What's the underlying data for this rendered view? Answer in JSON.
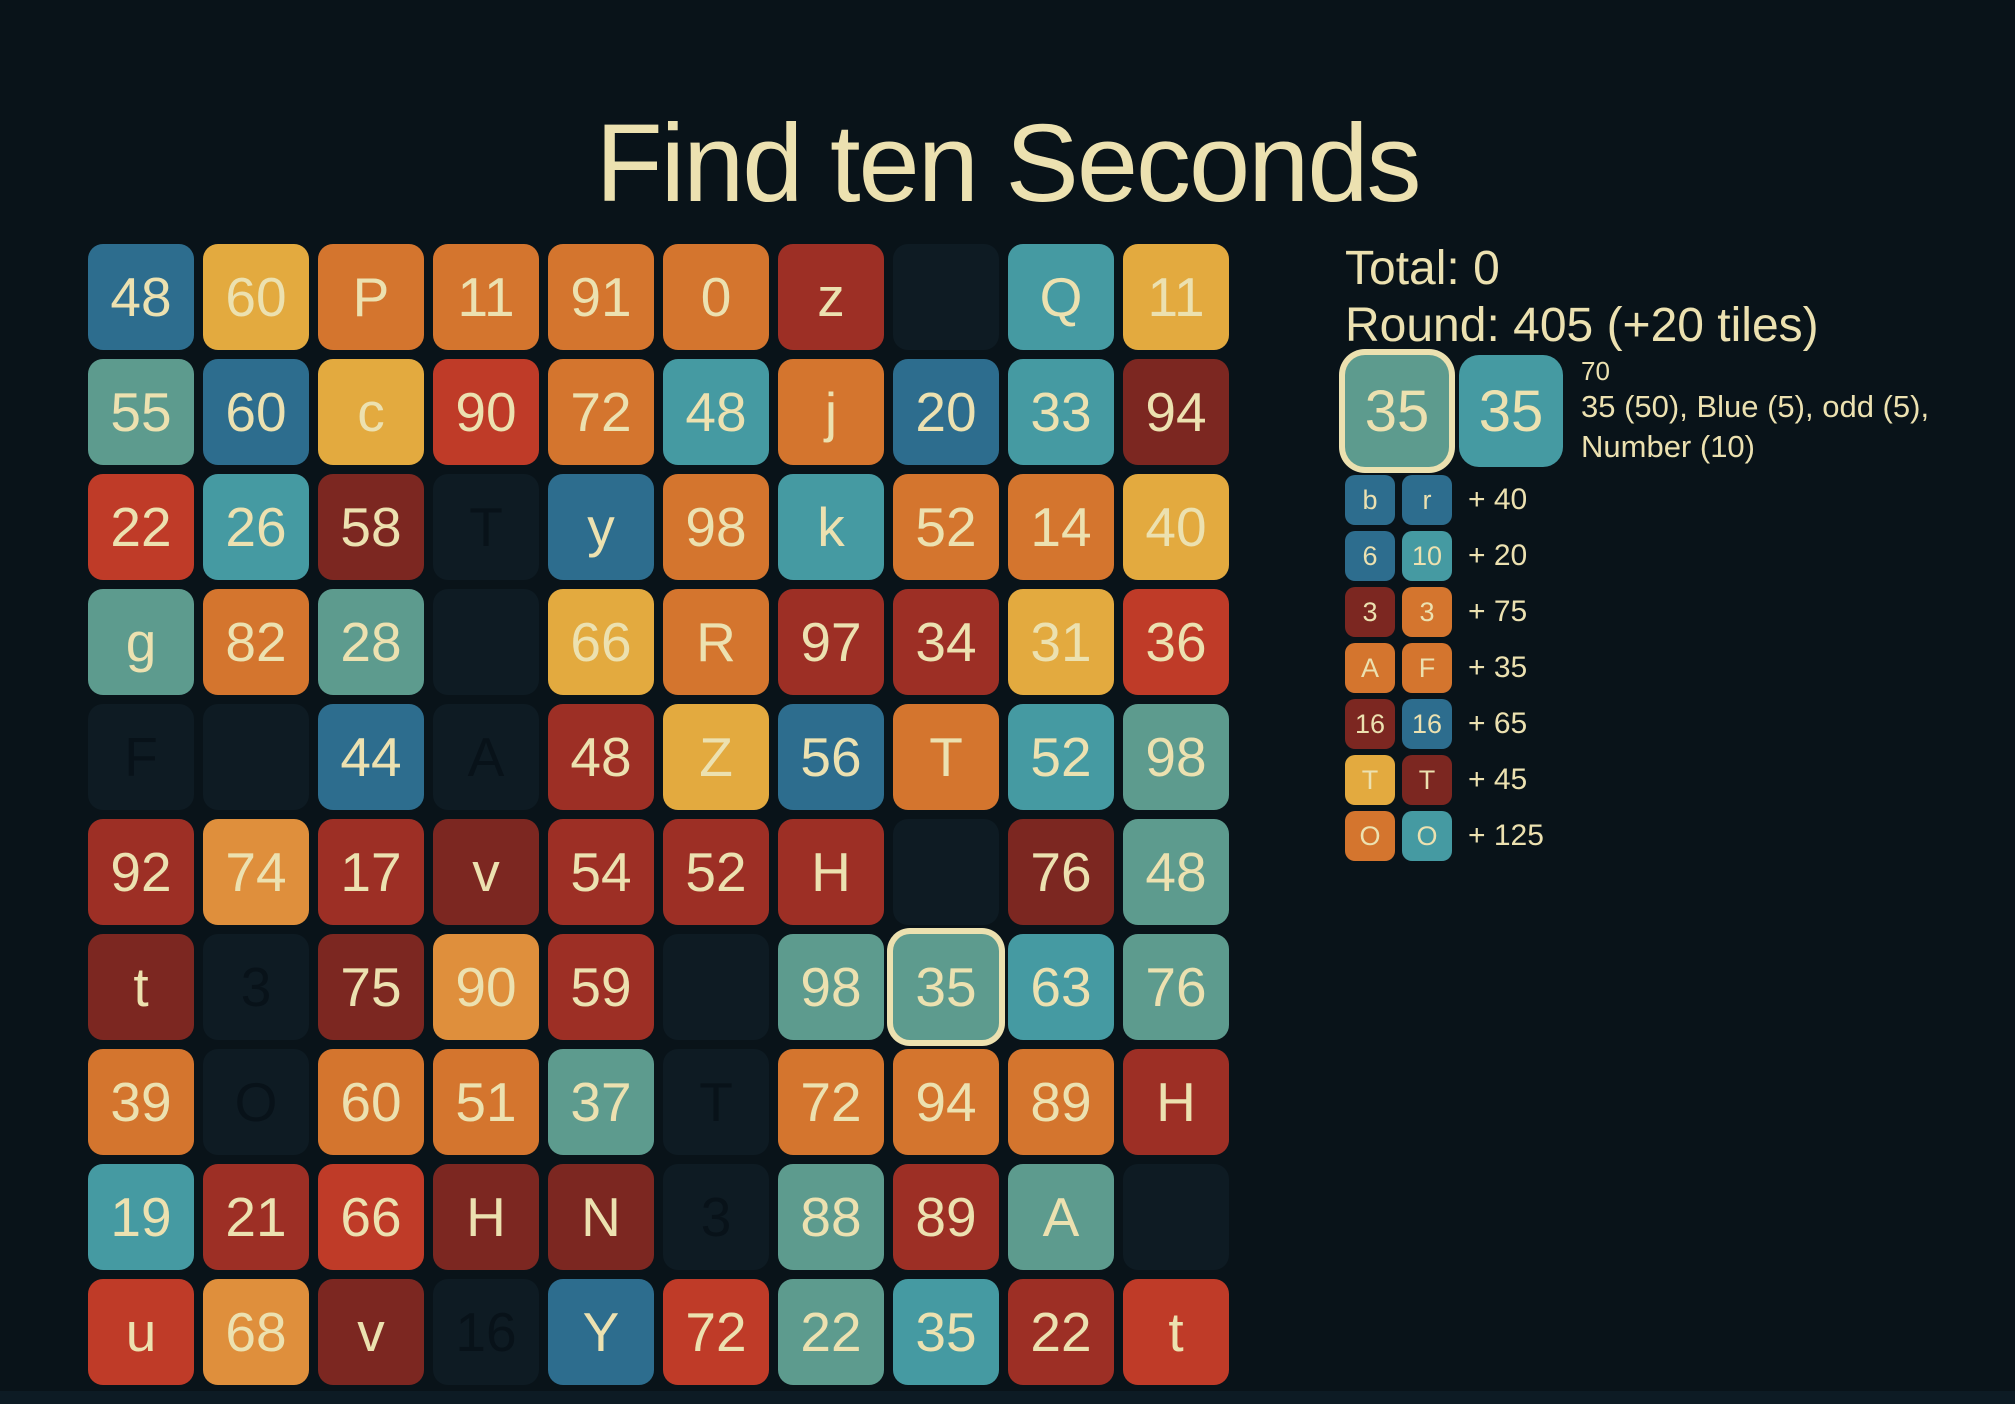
{
  "title": "Find ten Seconds",
  "colors": {
    "background": "#091319",
    "text_cream": "#ece1b0",
    "tile_palette": {
      "blue": "#2d6d8e",
      "teal": "#459aa2",
      "sage": "#5d9b8e",
      "gold": "#e3aa3f",
      "orange": "#d4752e",
      "amber": "#df8f3c",
      "red": "#bf3b28",
      "darkred": "#9d2f25",
      "maroon": "#7c2721"
    }
  },
  "board": {
    "rows": 10,
    "cols": 10,
    "tiles": [
      {
        "r": 1,
        "c": 1,
        "label": "48",
        "color": "blue",
        "state": "normal"
      },
      {
        "r": 1,
        "c": 2,
        "label": "60",
        "color": "gold",
        "state": "normal"
      },
      {
        "r": 1,
        "c": 3,
        "label": "P",
        "color": "orange",
        "state": "normal"
      },
      {
        "r": 1,
        "c": 4,
        "label": "11",
        "color": "orange",
        "state": "normal"
      },
      {
        "r": 1,
        "c": 5,
        "label": "91",
        "color": "orange",
        "state": "normal"
      },
      {
        "r": 1,
        "c": 6,
        "label": "0",
        "color": "orange",
        "state": "normal"
      },
      {
        "r": 1,
        "c": 7,
        "label": "z",
        "color": "darkred",
        "state": "normal"
      },
      {
        "r": 1,
        "c": 8,
        "label": "",
        "color": "ghost",
        "state": "ghost"
      },
      {
        "r": 1,
        "c": 9,
        "label": "Q",
        "color": "teal",
        "state": "normal"
      },
      {
        "r": 1,
        "c": 10,
        "label": "11",
        "color": "gold",
        "state": "normal"
      },
      {
        "r": 2,
        "c": 1,
        "label": "55",
        "color": "sage",
        "state": "normal"
      },
      {
        "r": 2,
        "c": 2,
        "label": "60",
        "color": "blue",
        "state": "normal"
      },
      {
        "r": 2,
        "c": 3,
        "label": "c",
        "color": "gold",
        "state": "normal"
      },
      {
        "r": 2,
        "c": 4,
        "label": "90",
        "color": "red",
        "state": "normal"
      },
      {
        "r": 2,
        "c": 5,
        "label": "72",
        "color": "orange",
        "state": "normal"
      },
      {
        "r": 2,
        "c": 6,
        "label": "48",
        "color": "teal",
        "state": "normal"
      },
      {
        "r": 2,
        "c": 7,
        "label": "j",
        "color": "orange",
        "state": "normal"
      },
      {
        "r": 2,
        "c": 8,
        "label": "20",
        "color": "blue",
        "state": "normal"
      },
      {
        "r": 2,
        "c": 9,
        "label": "33",
        "color": "teal",
        "state": "normal"
      },
      {
        "r": 2,
        "c": 10,
        "label": "94",
        "color": "maroon",
        "state": "normal"
      },
      {
        "r": 3,
        "c": 1,
        "label": "22",
        "color": "red",
        "state": "normal"
      },
      {
        "r": 3,
        "c": 2,
        "label": "26",
        "color": "teal",
        "state": "normal"
      },
      {
        "r": 3,
        "c": 3,
        "label": "58",
        "color": "maroon",
        "state": "normal"
      },
      {
        "r": 3,
        "c": 4,
        "label": "T",
        "color": "ghost",
        "state": "ghost"
      },
      {
        "r": 3,
        "c": 5,
        "label": "y",
        "color": "blue",
        "state": "normal"
      },
      {
        "r": 3,
        "c": 6,
        "label": "98",
        "color": "orange",
        "state": "normal"
      },
      {
        "r": 3,
        "c": 7,
        "label": "k",
        "color": "teal",
        "state": "normal"
      },
      {
        "r": 3,
        "c": 8,
        "label": "52",
        "color": "orange",
        "state": "normal"
      },
      {
        "r": 3,
        "c": 9,
        "label": "14",
        "color": "orange",
        "state": "normal"
      },
      {
        "r": 3,
        "c": 10,
        "label": "40",
        "color": "gold",
        "state": "normal"
      },
      {
        "r": 4,
        "c": 1,
        "label": "g",
        "color": "sage",
        "state": "normal"
      },
      {
        "r": 4,
        "c": 2,
        "label": "82",
        "color": "orange",
        "state": "normal"
      },
      {
        "r": 4,
        "c": 3,
        "label": "28",
        "color": "sage",
        "state": "normal"
      },
      {
        "r": 4,
        "c": 4,
        "label": "",
        "color": "ghost",
        "state": "ghost"
      },
      {
        "r": 4,
        "c": 5,
        "label": "66",
        "color": "gold",
        "state": "normal"
      },
      {
        "r": 4,
        "c": 6,
        "label": "R",
        "color": "orange",
        "state": "normal"
      },
      {
        "r": 4,
        "c": 7,
        "label": "97",
        "color": "darkred",
        "state": "normal"
      },
      {
        "r": 4,
        "c": 8,
        "label": "34",
        "color": "darkred",
        "state": "normal"
      },
      {
        "r": 4,
        "c": 9,
        "label": "31",
        "color": "gold",
        "state": "normal"
      },
      {
        "r": 4,
        "c": 10,
        "label": "36",
        "color": "red",
        "state": "normal"
      },
      {
        "r": 5,
        "c": 1,
        "label": "F",
        "color": "ghost",
        "state": "ghost"
      },
      {
        "r": 5,
        "c": 2,
        "label": "",
        "color": "ghost",
        "state": "ghost"
      },
      {
        "r": 5,
        "c": 3,
        "label": "44",
        "color": "blue",
        "state": "normal"
      },
      {
        "r": 5,
        "c": 4,
        "label": "A",
        "color": "ghost",
        "state": "ghost"
      },
      {
        "r": 5,
        "c": 5,
        "label": "48",
        "color": "darkred",
        "state": "normal"
      },
      {
        "r": 5,
        "c": 6,
        "label": "Z",
        "color": "gold",
        "state": "normal"
      },
      {
        "r": 5,
        "c": 7,
        "label": "56",
        "color": "blue",
        "state": "normal"
      },
      {
        "r": 5,
        "c": 8,
        "label": "T",
        "color": "orange",
        "state": "normal"
      },
      {
        "r": 5,
        "c": 9,
        "label": "52",
        "color": "teal",
        "state": "normal"
      },
      {
        "r": 5,
        "c": 10,
        "label": "98",
        "color": "sage",
        "state": "normal"
      },
      {
        "r": 6,
        "c": 1,
        "label": "92",
        "color": "darkred",
        "state": "normal"
      },
      {
        "r": 6,
        "c": 2,
        "label": "74",
        "color": "amber",
        "state": "normal"
      },
      {
        "r": 6,
        "c": 3,
        "label": "17",
        "color": "darkred",
        "state": "normal"
      },
      {
        "r": 6,
        "c": 4,
        "label": "v",
        "color": "maroon",
        "state": "normal"
      },
      {
        "r": 6,
        "c": 5,
        "label": "54",
        "color": "darkred",
        "state": "normal"
      },
      {
        "r": 6,
        "c": 6,
        "label": "52",
        "color": "darkred",
        "state": "normal"
      },
      {
        "r": 6,
        "c": 7,
        "label": "H",
        "color": "darkred",
        "state": "normal"
      },
      {
        "r": 6,
        "c": 8,
        "label": "",
        "color": "ghost",
        "state": "ghost"
      },
      {
        "r": 6,
        "c": 9,
        "label": "76",
        "color": "maroon",
        "state": "normal"
      },
      {
        "r": 6,
        "c": 10,
        "label": "48",
        "color": "sage",
        "state": "normal"
      },
      {
        "r": 7,
        "c": 1,
        "label": "t",
        "color": "maroon",
        "state": "normal"
      },
      {
        "r": 7,
        "c": 2,
        "label": "3",
        "color": "ghost",
        "state": "ghost"
      },
      {
        "r": 7,
        "c": 3,
        "label": "75",
        "color": "maroon",
        "state": "normal"
      },
      {
        "r": 7,
        "c": 4,
        "label": "90",
        "color": "amber",
        "state": "normal"
      },
      {
        "r": 7,
        "c": 5,
        "label": "59",
        "color": "darkred",
        "state": "normal"
      },
      {
        "r": 7,
        "c": 6,
        "label": "",
        "color": "ghost",
        "state": "ghost"
      },
      {
        "r": 7,
        "c": 7,
        "label": "98",
        "color": "sage",
        "state": "normal"
      },
      {
        "r": 7,
        "c": 8,
        "label": "35",
        "color": "sage",
        "state": "selected"
      },
      {
        "r": 7,
        "c": 9,
        "label": "63",
        "color": "teal",
        "state": "normal"
      },
      {
        "r": 7,
        "c": 10,
        "label": "76",
        "color": "sage",
        "state": "normal"
      },
      {
        "r": 8,
        "c": 1,
        "label": "39",
        "color": "orange",
        "state": "normal"
      },
      {
        "r": 8,
        "c": 2,
        "label": "O",
        "color": "ghost",
        "state": "ghost"
      },
      {
        "r": 8,
        "c": 3,
        "label": "60",
        "color": "orange",
        "state": "normal"
      },
      {
        "r": 8,
        "c": 4,
        "label": "51",
        "color": "orange",
        "state": "normal"
      },
      {
        "r": 8,
        "c": 5,
        "label": "37",
        "color": "sage",
        "state": "normal"
      },
      {
        "r": 8,
        "c": 6,
        "label": "T",
        "color": "ghost",
        "state": "ghost"
      },
      {
        "r": 8,
        "c": 7,
        "label": "72",
        "color": "orange",
        "state": "normal"
      },
      {
        "r": 8,
        "c": 8,
        "label": "94",
        "color": "orange",
        "state": "normal"
      },
      {
        "r": 8,
        "c": 9,
        "label": "89",
        "color": "orange",
        "state": "normal"
      },
      {
        "r": 8,
        "c": 10,
        "label": "H",
        "color": "darkred",
        "state": "normal"
      },
      {
        "r": 9,
        "c": 1,
        "label": "19",
        "color": "teal",
        "state": "normal"
      },
      {
        "r": 9,
        "c": 2,
        "label": "21",
        "color": "darkred",
        "state": "normal"
      },
      {
        "r": 9,
        "c": 3,
        "label": "66",
        "color": "red",
        "state": "normal"
      },
      {
        "r": 9,
        "c": 4,
        "label": "H",
        "color": "maroon",
        "state": "normal"
      },
      {
        "r": 9,
        "c": 5,
        "label": "N",
        "color": "maroon",
        "state": "normal"
      },
      {
        "r": 9,
        "c": 6,
        "label": "3",
        "color": "ghost",
        "state": "ghost"
      },
      {
        "r": 9,
        "c": 7,
        "label": "88",
        "color": "sage",
        "state": "normal"
      },
      {
        "r": 9,
        "c": 8,
        "label": "89",
        "color": "darkred",
        "state": "normal"
      },
      {
        "r": 9,
        "c": 9,
        "label": "A",
        "color": "sage",
        "state": "normal"
      },
      {
        "r": 9,
        "c": 10,
        "label": "",
        "color": "ghost",
        "state": "ghost"
      },
      {
        "r": 10,
        "c": 1,
        "label": "u",
        "color": "red",
        "state": "normal"
      },
      {
        "r": 10,
        "c": 2,
        "label": "68",
        "color": "amber",
        "state": "normal"
      },
      {
        "r": 10,
        "c": 3,
        "label": "v",
        "color": "maroon",
        "state": "normal"
      },
      {
        "r": 10,
        "c": 4,
        "label": "16",
        "color": "ghost",
        "state": "ghost"
      },
      {
        "r": 10,
        "c": 5,
        "label": "Y",
        "color": "blue",
        "state": "normal"
      },
      {
        "r": 10,
        "c": 6,
        "label": "72",
        "color": "red",
        "state": "normal"
      },
      {
        "r": 10,
        "c": 7,
        "label": "22",
        "color": "sage",
        "state": "normal"
      },
      {
        "r": 10,
        "c": 8,
        "label": "35",
        "color": "teal",
        "state": "normal"
      },
      {
        "r": 10,
        "c": 9,
        "label": "22",
        "color": "darkred",
        "state": "normal"
      },
      {
        "r": 10,
        "c": 10,
        "label": "t",
        "color": "red",
        "state": "normal"
      }
    ]
  },
  "sidebar": {
    "scoreboard": {
      "total_label": "Total:",
      "total_value": "0",
      "round_label": "Round:",
      "round_value": "405",
      "round_note": "(+20 tiles)"
    },
    "current_pair": {
      "tiles": [
        {
          "label": "35",
          "color": "sage",
          "selected": true
        },
        {
          "label": "35",
          "color": "teal",
          "selected": false
        }
      ],
      "score": "70",
      "breakdown": [
        "35 (50), Blue (5), odd (5),",
        "Number (10)"
      ]
    },
    "history": [
      {
        "a": {
          "label": "b",
          "color": "blue"
        },
        "b": {
          "label": "r",
          "color": "blue"
        },
        "bonus": "+ 40"
      },
      {
        "a": {
          "label": "6",
          "color": "blue"
        },
        "b": {
          "label": "10",
          "color": "teal"
        },
        "bonus": "+ 20"
      },
      {
        "a": {
          "label": "3",
          "color": "maroon"
        },
        "b": {
          "label": "3",
          "color": "orange"
        },
        "bonus": "+ 75"
      },
      {
        "a": {
          "label": "A",
          "color": "orange"
        },
        "b": {
          "label": "F",
          "color": "orange"
        },
        "bonus": "+ 35"
      },
      {
        "a": {
          "label": "16",
          "color": "maroon"
        },
        "b": {
          "label": "16",
          "color": "blue"
        },
        "bonus": "+ 65"
      },
      {
        "a": {
          "label": "T",
          "color": "gold"
        },
        "b": {
          "label": "T",
          "color": "maroon"
        },
        "bonus": "+ 45"
      },
      {
        "a": {
          "label": "O",
          "color": "orange"
        },
        "b": {
          "label": "O",
          "color": "teal"
        },
        "bonus": "+ 125"
      }
    ]
  }
}
